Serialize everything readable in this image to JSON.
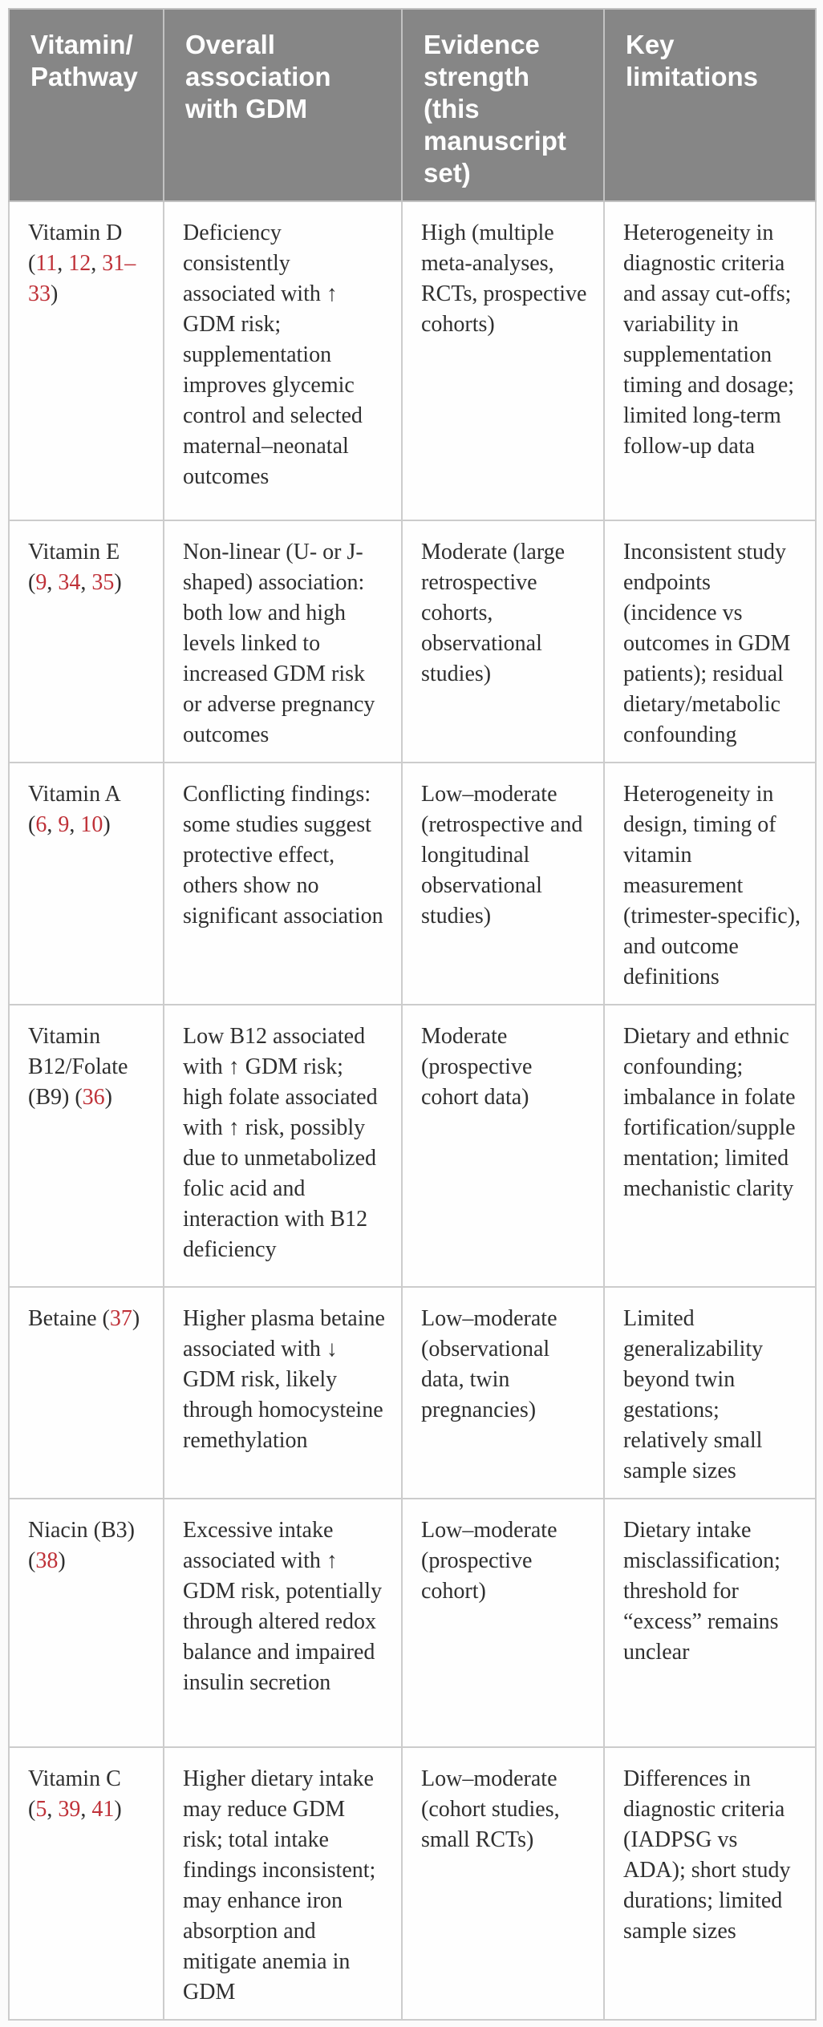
{
  "colors": {
    "citation_red": "#bf3138",
    "header_background": "#868686",
    "header_text": "#ffffff",
    "body_text": "#2f2f2f",
    "border": "#cccccc"
  },
  "table": {
    "columns": [
      "Vitamin/Pathway",
      "Overall association with GDM",
      "Evidence strength (this manuscript set)",
      "Key limitations"
    ],
    "rows": [
      {
        "pathway": [
          {
            "text": "Vitamin D ("
          },
          {
            "text": "11",
            "link": true
          },
          {
            "text": ", "
          },
          {
            "text": "12",
            "link": true
          },
          {
            "text": ", "
          },
          {
            "text": "31–33",
            "link": true
          },
          {
            "text": ")"
          }
        ],
        "association": "Deficiency consistently associated with ↑ GDM risk; supplementation improves glycemic control and selected maternal–neonatal outcomes",
        "evidence": "High (multiple meta-analyses, RCTs, prospective cohorts)",
        "limitations": "Heterogeneity in diagnostic criteria and assay cut-offs; variability in supplementation timing and dosage; limited long-term follow-up data"
      },
      {
        "pathway": [
          {
            "text": "Vitamin E ("
          },
          {
            "text": "9",
            "link": true
          },
          {
            "text": ", "
          },
          {
            "text": "34",
            "link": true
          },
          {
            "text": ", "
          },
          {
            "text": "35",
            "link": true
          },
          {
            "text": ")"
          }
        ],
        "association": "Non-linear (U- or J-shaped) association: both low and high levels linked to increased GDM risk or adverse pregnancy outcomes",
        "evidence": "Moderate (large retrospective cohorts, observational studies)",
        "limitations": "Inconsistent study endpoints (incidence vs outcomes in GDM patients); residual dietary/metabolic confounding"
      },
      {
        "pathway": [
          {
            "text": "Vitamin A ("
          },
          {
            "text": "6",
            "link": true
          },
          {
            "text": ", "
          },
          {
            "text": "9",
            "link": true
          },
          {
            "text": ", "
          },
          {
            "text": "10",
            "link": true
          },
          {
            "text": ")"
          }
        ],
        "association": "Conflicting findings: some studies suggest protective effect, others show no significant association",
        "evidence": "Low–moderate (retrospective and longitudinal observational studies)",
        "limitations": "Heterogeneity in design, timing of vitamin measurement (trimester-specific), and outcome definitions"
      },
      {
        "pathway": [
          {
            "text": "Vitamin B12/Folate (B9) ("
          },
          {
            "text": "36",
            "link": true
          },
          {
            "text": ")"
          }
        ],
        "association": "Low B12 associated with ↑ GDM risk; high folate associated with ↑ risk, possibly due to unmetabolized folic acid and interaction with B12 deficiency",
        "evidence": "Moderate (prospective cohort data)",
        "limitations": "Dietary and ethnic confounding; imbalance in folate fortification/supplementation; limited mechanistic clarity"
      },
      {
        "pathway": [
          {
            "text": "Betaine ("
          },
          {
            "text": "37",
            "link": true
          },
          {
            "text": ")"
          }
        ],
        "association": "Higher plasma betaine associated with ↓ GDM risk, likely through homocysteine remethylation",
        "evidence": "Low–moderate (observational data, twin pregnancies)",
        "limitations": "Limited generalizability beyond twin gestations; relatively small sample sizes"
      },
      {
        "pathway": [
          {
            "text": "Niacin (B3) ("
          },
          {
            "text": "38",
            "link": true
          },
          {
            "text": ")"
          }
        ],
        "association": "Excessive intake associated with ↑ GDM risk, potentially through altered redox balance and impaired insulin secretion",
        "evidence": "Low–moderate (prospective cohort)",
        "limitations": "Dietary intake misclassification; threshold for “excess” remains unclear"
      },
      {
        "pathway": [
          {
            "text": "Vitamin C ("
          },
          {
            "text": "5",
            "link": true
          },
          {
            "text": ", "
          },
          {
            "text": "39",
            "link": true
          },
          {
            "text": ", "
          },
          {
            "text": "41",
            "link": true
          },
          {
            "text": ")"
          }
        ],
        "association": "Higher dietary intake may reduce GDM risk; total intake findings inconsistent; may enhance iron absorption and mitigate anemia in GDM",
        "evidence": "Low–moderate (cohort studies, small RCTs)",
        "limitations": "Differences in diagnostic criteria (IADPSG vs ADA); short study durations; limited sample sizes"
      }
    ]
  }
}
